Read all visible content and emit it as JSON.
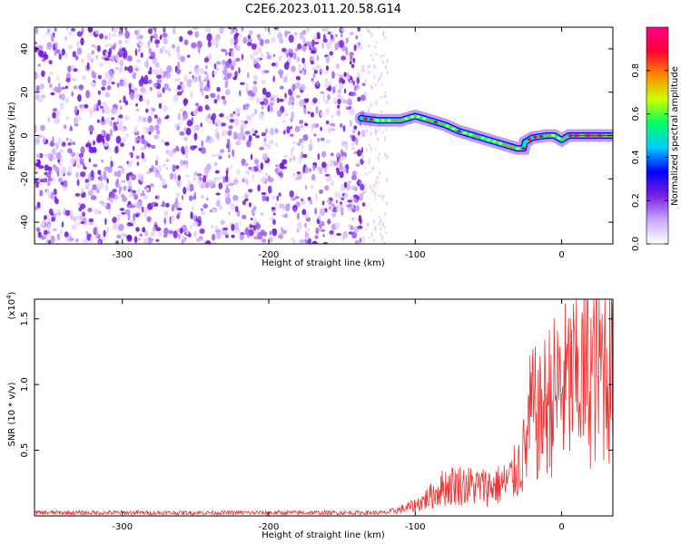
{
  "title": "C2E6.2023.011.20.58.G14",
  "chart_data": [
    {
      "type": "heatmap",
      "name": "spectrogram",
      "xlabel": "Height of straight line (km)",
      "ylabel": "Frequency (Hz)",
      "xlim": [
        -360,
        35
      ],
      "ylim": [
        -50,
        50
      ],
      "xticks": [
        -300,
        -200,
        -100,
        0
      ],
      "xtick_labels": [
        "-300",
        "-200",
        "-100",
        "0"
      ],
      "yticks": [
        -40,
        -20,
        0,
        20,
        40
      ],
      "ytick_labels": [
        "-40",
        "-20",
        "0",
        "20",
        "40"
      ],
      "noise_region_x": [
        -360,
        -135
      ],
      "signal_track": {
        "x": [
          -137,
          -125,
          -110,
          -100,
          -90,
          -80,
          -70,
          -60,
          -50,
          -40,
          -30,
          -26,
          -25,
          -20,
          -10,
          -5,
          0,
          5,
          10,
          20,
          35
        ],
        "y": [
          8,
          7,
          7,
          9,
          7,
          5,
          2,
          0,
          -2,
          -4,
          -6,
          -6,
          -3,
          -1,
          0,
          0,
          -2,
          0,
          0,
          0,
          0
        ]
      },
      "colorbar": {
        "label": "Normalized spectral amplitude",
        "range": [
          0,
          1
        ],
        "ticks": [
          0.0,
          0.2,
          0.4,
          0.6,
          0.8
        ],
        "tick_labels": [
          "0.0",
          "0.2",
          "0.4",
          "0.6",
          "0.8"
        ],
        "colors": [
          "#ffffff",
          "#c9a8ff",
          "#7a1fe0",
          "#0000ff",
          "#00ccff",
          "#00ff66",
          "#ccff00",
          "#ff8800",
          "#ff0033",
          "#ff0088"
        ]
      }
    },
    {
      "type": "line",
      "name": "snr",
      "xlabel": "Height of straight line (km)",
      "ylabel": "SNR (10 * v/v)",
      "ylabel_multiplier": "(x10",
      "ylabel_exponent": "4",
      "ylabel_close": ")",
      "xlim": [
        -360,
        35
      ],
      "ylim": [
        0,
        1.65
      ],
      "xticks": [
        -300,
        -200,
        -100,
        0
      ],
      "xtick_labels": [
        "-300",
        "-200",
        "-100",
        "0"
      ],
      "yticks": [
        0.5,
        1.0,
        1.5
      ],
      "ytick_labels": [
        "0.5",
        "1.0",
        "1.5"
      ],
      "color": "#ee3333",
      "envelope": {
        "x": [
          -360,
          -120,
          -110,
          -100,
          -90,
          -80,
          -70,
          -60,
          -50,
          -40,
          -35,
          -30,
          -25,
          -22,
          -20,
          -15,
          -10,
          -5,
          0,
          10,
          20,
          30,
          35
        ],
        "y": [
          0.03,
          0.03,
          0.06,
          0.1,
          0.18,
          0.28,
          0.3,
          0.28,
          0.28,
          0.3,
          0.35,
          0.45,
          0.6,
          0.9,
          1.0,
          0.9,
          1.1,
          1.15,
          1.2,
          1.3,
          1.38,
          1.45,
          1.5
        ]
      }
    }
  ]
}
